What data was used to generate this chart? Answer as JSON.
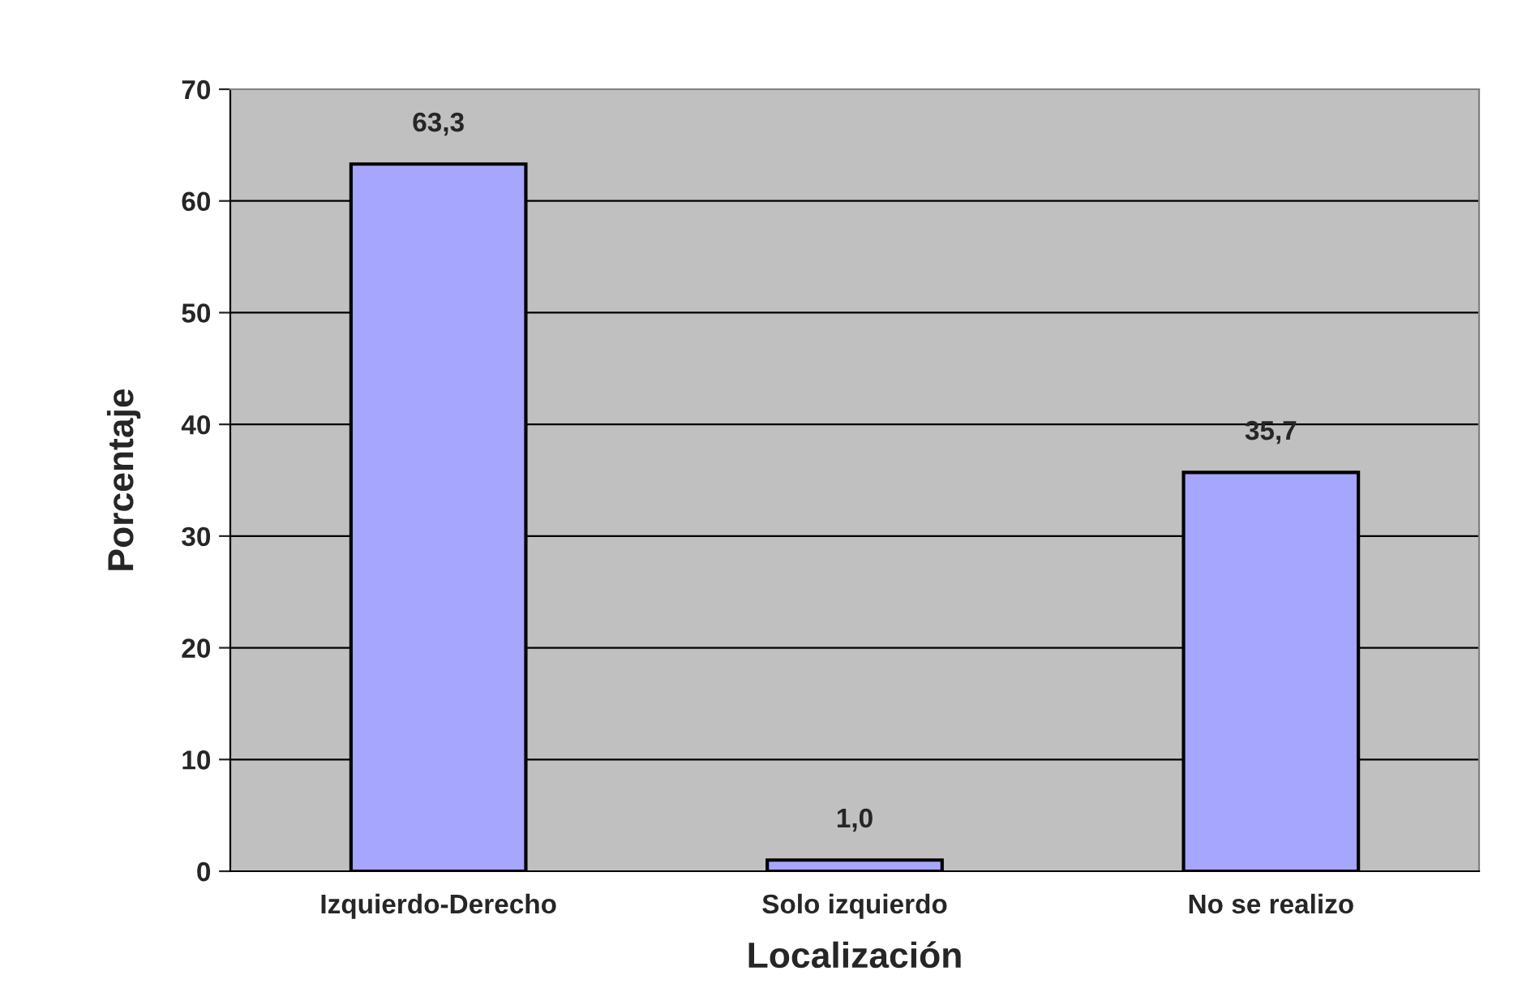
{
  "chart_data": {
    "type": "bar",
    "xlabel": "Localización",
    "ylabel": "Porcentaje",
    "categories": [
      "Izquierdo-Derecho",
      "Solo izquierdo",
      "No se realizo"
    ],
    "values": [
      63.3,
      1.0,
      35.7
    ],
    "value_labels": [
      "63,3",
      "1,0",
      "35,7"
    ],
    "color": "#a6a6ff",
    "ylim": [
      0,
      70
    ],
    "yticks": [
      0,
      10,
      20,
      30,
      40,
      50,
      60,
      70
    ],
    "grid": "y",
    "legend": false
  }
}
